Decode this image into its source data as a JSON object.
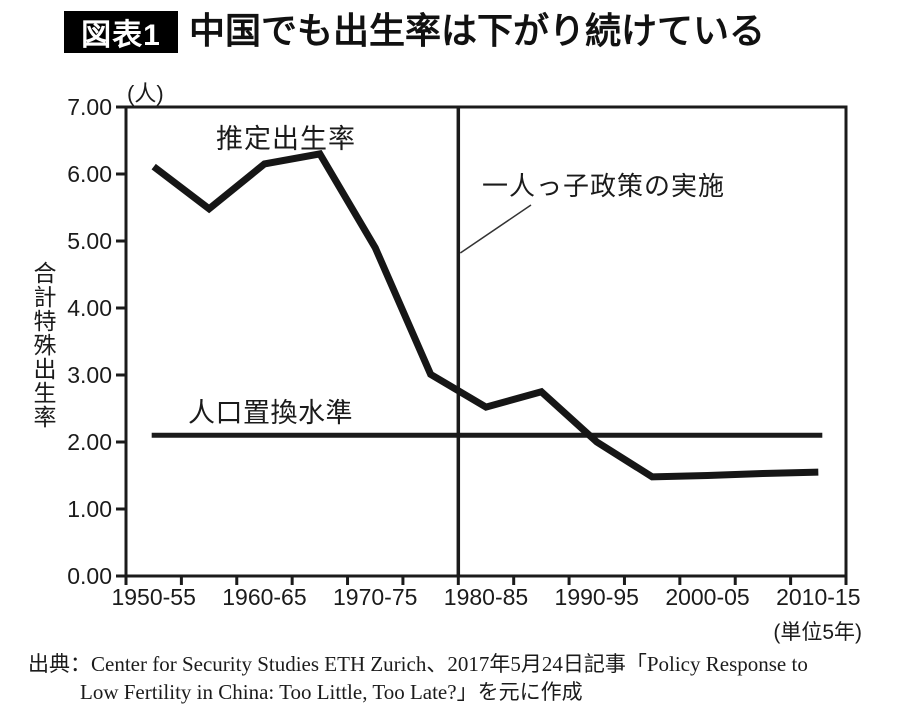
{
  "colors": {
    "ink": "#1b1b1b",
    "badge_bg": "#000000",
    "badge_text": "#ffffff",
    "background": "#ffffff",
    "leader_line": "#333333"
  },
  "header": {
    "badge": "図表1",
    "title": "中国でも出生率は下がり続けている"
  },
  "chart_data": {
    "type": "line",
    "title": "中国でも出生率は下がり続けている",
    "y_axis_label": "合計特殊出生率",
    "y_unit_label": "(人)",
    "x_unit_label": "(単位5年)",
    "ylim": [
      0,
      7
    ],
    "y_tick_labels": [
      "7.00",
      "6.00",
      "5.00",
      "4.00",
      "3.00",
      "2.00",
      "1.00",
      "0.00"
    ],
    "x_tick_labels": [
      "1950-55",
      "1960-65",
      "1970-75",
      "1980-85",
      "1990-95",
      "2000-05",
      "2010-15"
    ],
    "periods": [
      "1950-55",
      "1955-60",
      "1960-65",
      "1965-70",
      "1970-75",
      "1975-80",
      "1980-85",
      "1985-90",
      "1990-95",
      "1995-2000",
      "2000-05",
      "2005-10",
      "2010-15"
    ],
    "series": [
      {
        "name": "推定出生率",
        "values": [
          6.11,
          5.48,
          6.15,
          6.3,
          4.9,
          3.01,
          2.52,
          2.75,
          2.0,
          1.48,
          1.5,
          1.53,
          1.55
        ]
      }
    ],
    "annotations": {
      "series_label": "推定出生率",
      "replacement_line": {
        "label": "人口置換水準",
        "value": 2.1
      },
      "policy_line": {
        "label": "一人っ子政策の実施",
        "boundary_index": 6
      }
    },
    "grid": false,
    "legend_position": "none"
  },
  "footer": {
    "source_line1": "出典：Center for Security Studies ETH Zurich、2017年5月24日記事「Policy Response to",
    "source_line2": "Low Fertility in China: Too Little, Too Late?」を元に作成"
  }
}
